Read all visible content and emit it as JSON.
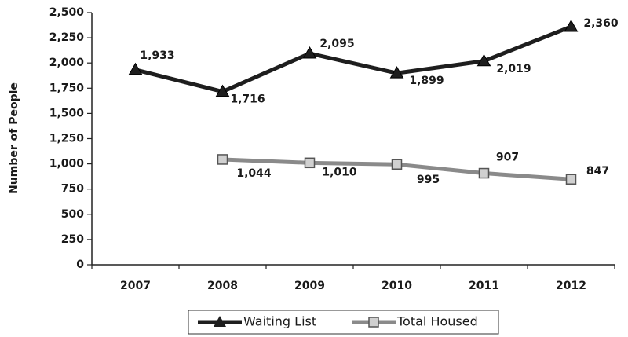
{
  "chart_data": {
    "type": "line",
    "ylabel": "Number of People",
    "categories": [
      "2007",
      "2008",
      "2009",
      "2010",
      "2011",
      "2012"
    ],
    "series": [
      {
        "name": "Waiting List",
        "color": "#1e1e1e",
        "marker": "triangle",
        "values": [
          1933,
          1716,
          2095,
          1899,
          2019,
          2360
        ],
        "value_labels": [
          "1,933",
          "1,716",
          "2,095",
          "1,899",
          "2,019",
          "2,360"
        ]
      },
      {
        "name": "Total Housed",
        "color": "#8a8a8a",
        "marker": "square",
        "values": [
          null,
          1044,
          1010,
          995,
          907,
          847
        ],
        "value_labels": [
          null,
          "1,044",
          "1,010",
          "995",
          "907",
          "847"
        ]
      }
    ],
    "ylim": [
      0,
      2500
    ],
    "yticks": [
      0,
      250,
      500,
      750,
      {
        "value": 1000,
        "label": "1,000"
      },
      {
        "value": 1250,
        "label": "1,250"
      },
      {
        "value": 1500,
        "label": "1,500"
      },
      {
        "value": 1750,
        "label": "1,750"
      },
      {
        "value": 2000,
        "label": "2,000"
      },
      {
        "value": 2250,
        "label": "2,250"
      },
      {
        "value": 2500,
        "label": "2,500"
      }
    ],
    "legend": "bottom"
  }
}
